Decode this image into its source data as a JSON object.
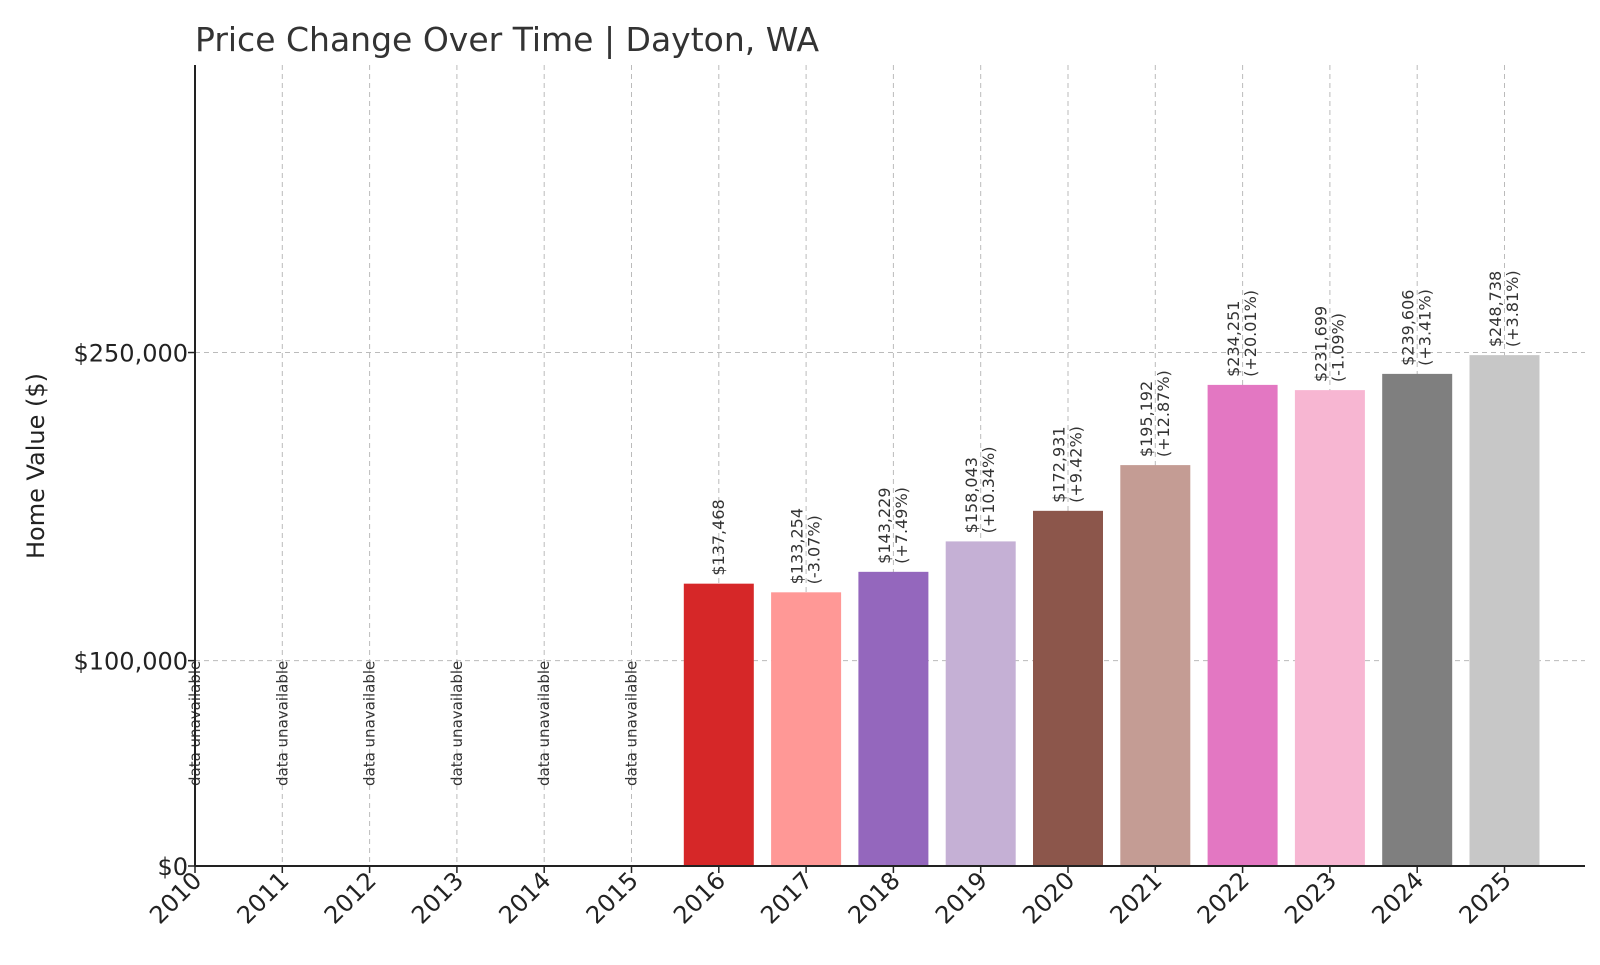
{
  "chart_data": {
    "type": "bar",
    "title": "Price Change Over Time | Dayton, WA",
    "xlabel": "",
    "ylabel": "Home Value ($)",
    "ylim": [
      0,
      390000
    ],
    "grid": true,
    "y_ticks": [
      {
        "value": 0,
        "label": "$0"
      },
      {
        "value": 100000,
        "label": "$100,000"
      },
      {
        "value": 250000,
        "label": "$250,000"
      }
    ],
    "categories": [
      "2010",
      "2011",
      "2012",
      "2013",
      "2014",
      "2015",
      "2016",
      "2017",
      "2018",
      "2019",
      "2020",
      "2021",
      "2022",
      "2023",
      "2024",
      "2025"
    ],
    "values": [
      null,
      null,
      null,
      null,
      null,
      null,
      137468,
      133254,
      143229,
      158043,
      172931,
      195192,
      234251,
      231699,
      239606,
      248738
    ],
    "value_labels": [
      "",
      "",
      "",
      "",
      "",
      "",
      "$137,468",
      "$133,254",
      "$143,229",
      "$158,043",
      "$172,931",
      "$195,192",
      "$234,251",
      "$231,699",
      "$239,606",
      "$248,738"
    ],
    "change_labels": [
      "",
      "",
      "",
      "",
      "",
      "",
      "",
      "(-3.07%)",
      "(+7.49%)",
      "(+10.34%)",
      "(+9.42%)",
      "(+12.87%)",
      "(+20.01%)",
      "(-1.09%)",
      "(+3.41%)",
      "(+3.81%)"
    ],
    "unavailable_label": "data unavailable",
    "colors": [
      "#d62728",
      "#d62728",
      "#d62728",
      "#d62728",
      "#d62728",
      "#d62728",
      "#d62728",
      "#ff9896",
      "#9467bd",
      "#c5b0d5",
      "#8c564b",
      "#c49c94",
      "#e377c2",
      "#f7b6d2",
      "#7f7f7f",
      "#c7c7c7"
    ]
  }
}
